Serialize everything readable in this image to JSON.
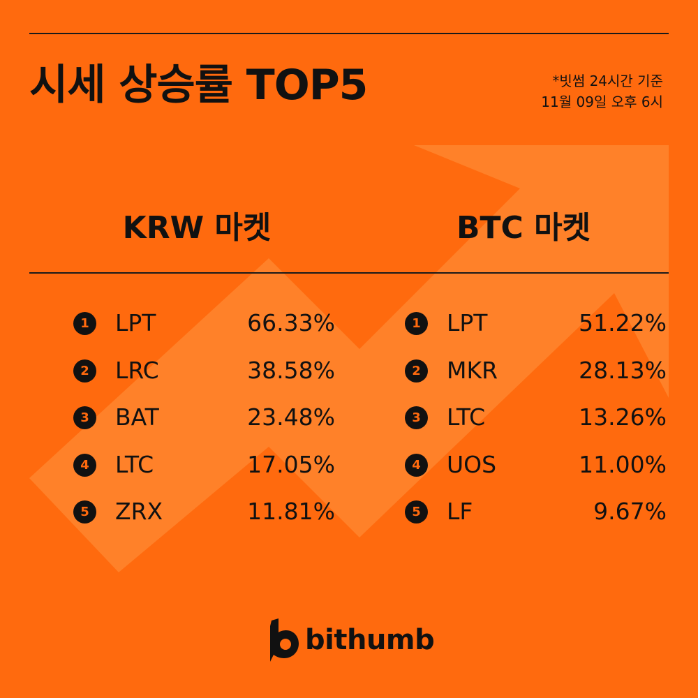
{
  "colors": {
    "background": "#FF6A0E",
    "arrow": "#FF9A4A",
    "text": "#111111"
  },
  "title": "시세 상승률 TOP5",
  "basis": {
    "line1": "*빗썸 24시간 기준",
    "line2": "11월 09일 오후 6시"
  },
  "markets": {
    "krw": {
      "title": "KRW 마켓",
      "rows": [
        {
          "rank": "1",
          "symbol": "LPT",
          "change": "66.33%"
        },
        {
          "rank": "2",
          "symbol": "LRC",
          "change": "38.58%"
        },
        {
          "rank": "3",
          "symbol": "BAT",
          "change": "23.48%"
        },
        {
          "rank": "4",
          "symbol": "LTC",
          "change": "17.05%"
        },
        {
          "rank": "5",
          "symbol": "ZRX",
          "change": "11.81%"
        }
      ]
    },
    "btc": {
      "title": "BTC 마켓",
      "rows": [
        {
          "rank": "1",
          "symbol": "LPT",
          "change": "51.22%"
        },
        {
          "rank": "2",
          "symbol": "MKR",
          "change": "28.13%"
        },
        {
          "rank": "3",
          "symbol": "LTC",
          "change": "13.26%"
        },
        {
          "rank": "4",
          "symbol": "UOS",
          "change": "11.00%"
        },
        {
          "rank": "5",
          "symbol": "LF",
          "change": "9.67%"
        }
      ]
    }
  },
  "logo": {
    "text": "bithumb",
    "icon": "bithumb-b-icon"
  }
}
